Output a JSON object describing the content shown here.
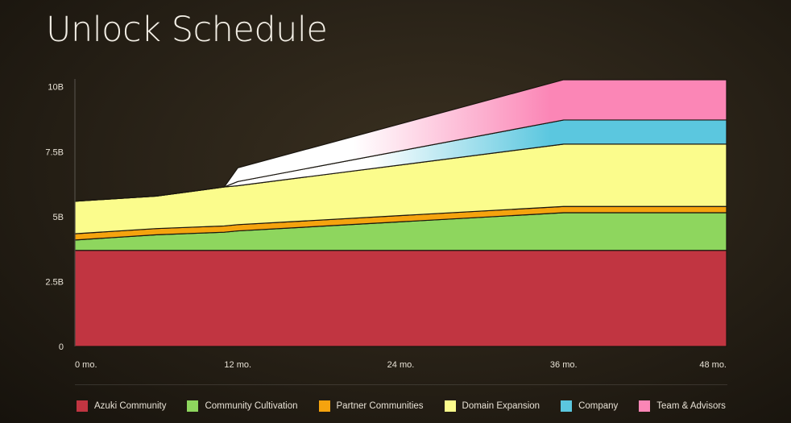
{
  "chart_data": {
    "type": "area",
    "title": "Unlock Schedule",
    "x_labels": [
      "0 mo.",
      "12 mo.",
      "24 mo.",
      "36 mo.",
      "48 mo."
    ],
    "x_ticks": [
      0,
      12,
      24,
      36,
      48
    ],
    "y_ticks": [
      0,
      2.5,
      5,
      7.5,
      10
    ],
    "y_tick_labels": [
      "0",
      "2.5B",
      "5B",
      "7.5B",
      "10B"
    ],
    "xlim": [
      0,
      48
    ],
    "ylim": [
      0,
      10.3
    ],
    "grid": false,
    "legend_position": "bottom",
    "x": [
      0,
      6,
      11,
      12,
      36,
      48
    ],
    "series": [
      {
        "name": "Azuki Community",
        "color": "#c13541",
        "values": [
          3.7,
          3.7,
          3.7,
          3.7,
          3.7,
          3.7
        ]
      },
      {
        "name": "Community Cultivation",
        "color": "#8ed65e",
        "values": [
          0.4,
          0.6,
          0.7,
          0.75,
          1.45,
          1.45
        ]
      },
      {
        "name": "Partner Communities",
        "color": "#f5a30e",
        "values": [
          0.24,
          0.24,
          0.24,
          0.24,
          0.24,
          0.24
        ]
      },
      {
        "name": "Domain Expansion",
        "color": "#fbfc8c",
        "values": [
          1.25,
          1.25,
          1.5,
          1.5,
          2.4,
          2.4
        ]
      },
      {
        "name": "Company",
        "color": "#5bc7df",
        "values": [
          0,
          0,
          0,
          0.16,
          0.93,
          0.93
        ]
      },
      {
        "name": "Team & Advisors",
        "color": "#fb86b6",
        "values": [
          0,
          0,
          0,
          0.53,
          1.55,
          1.55
        ]
      }
    ],
    "legend": [
      "Azuki Community",
      "Community Cultivation",
      "Partner Communities",
      "Domain Expansion",
      "Company",
      "Team & Advisors"
    ]
  }
}
